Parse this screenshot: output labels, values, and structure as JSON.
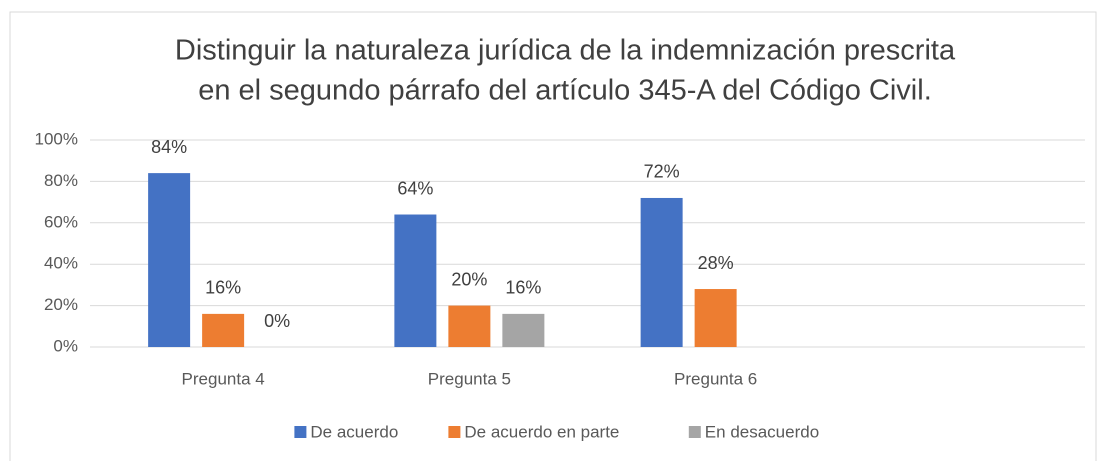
{
  "chart_data": {
    "type": "bar",
    "title": [
      "Distinguir la naturaleza jurídica de la indemnización prescrita",
      "en el segundo párrafo del artículo 345-A del Código Civil."
    ],
    "categories": [
      "Pregunta 4",
      "Pregunta 5",
      "Pregunta 6",
      null
    ],
    "series": [
      {
        "name": "De acuerdo",
        "color": "#4472c4",
        "values": [
          84,
          64,
          72,
          null
        ],
        "value_labels": [
          "84%",
          "64%",
          "72%",
          null
        ]
      },
      {
        "name": "De acuerdo en parte",
        "color": "#ed7d31",
        "values": [
          16,
          20,
          28,
          null
        ],
        "value_labels": [
          "16%",
          "20%",
          "28%",
          null
        ]
      },
      {
        "name": "En desacuerdo",
        "color": "#a5a5a5",
        "values": [
          0,
          16,
          null,
          null
        ],
        "value_labels": [
          "0%",
          "16%",
          null,
          null
        ]
      }
    ],
    "ylim": [
      0,
      100
    ],
    "yticks": [
      {
        "value": 0,
        "label": "0%"
      },
      {
        "value": 20,
        "label": "20%"
      },
      {
        "value": 40,
        "label": "40%"
      },
      {
        "value": 60,
        "label": "60%"
      },
      {
        "value": 80,
        "label": "80%"
      },
      {
        "value": 100,
        "label": "100%"
      }
    ],
    "grid": true,
    "legend": "bottom"
  }
}
